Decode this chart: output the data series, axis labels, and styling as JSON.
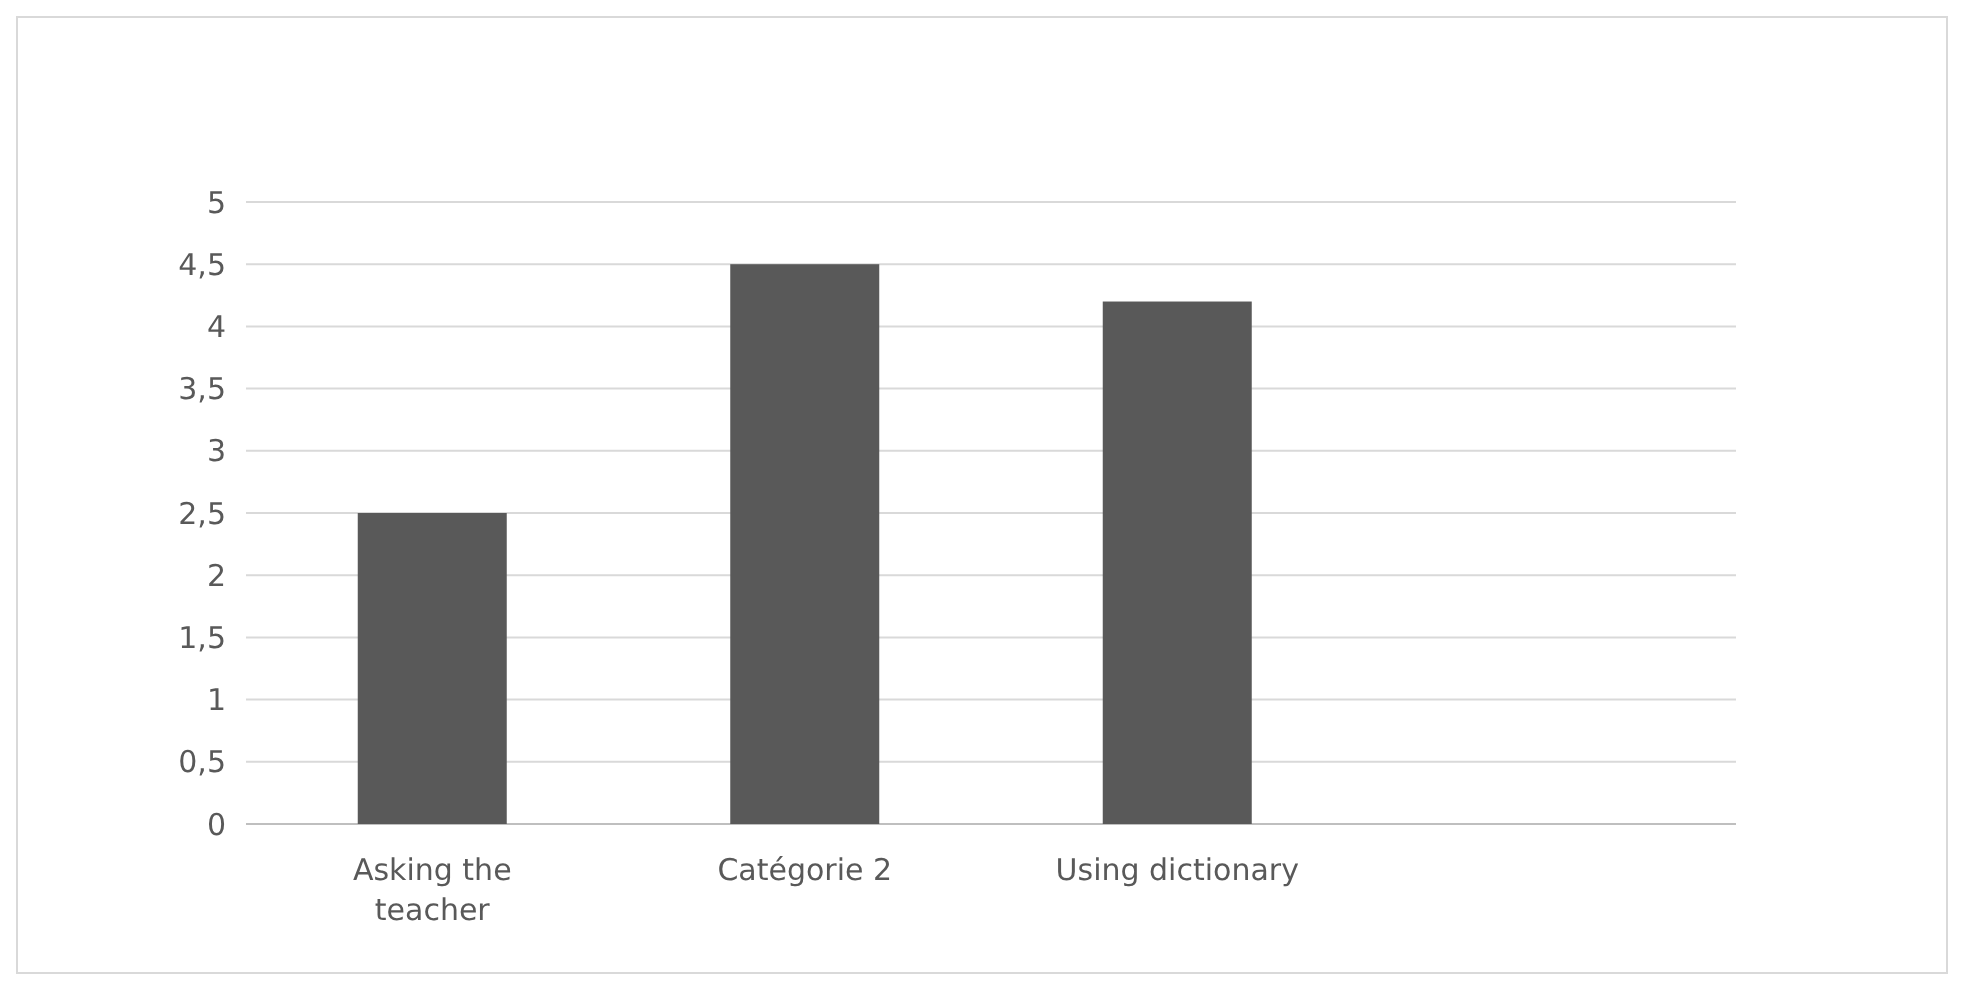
{
  "chart_data": {
    "type": "bar",
    "categories": [
      "Asking the teacher",
      "Catégorie 2",
      "Using dictionary",
      null
    ],
    "values": [
      2.5,
      4.5,
      4.2,
      null
    ],
    "color": "#595959",
    "ylim": [
      0,
      5
    ],
    "yticks": [
      0,
      {
        "value": 0.5,
        "label": "0,5"
      },
      1,
      {
        "value": 1.5,
        "label": "1,5"
      },
      2,
      {
        "value": 2.5,
        "label": "2,5"
      },
      3,
      {
        "value": 3.5,
        "label": "3,5"
      },
      4,
      {
        "value": 4.5,
        "label": "4,5"
      },
      5
    ],
    "grid": "y"
  }
}
